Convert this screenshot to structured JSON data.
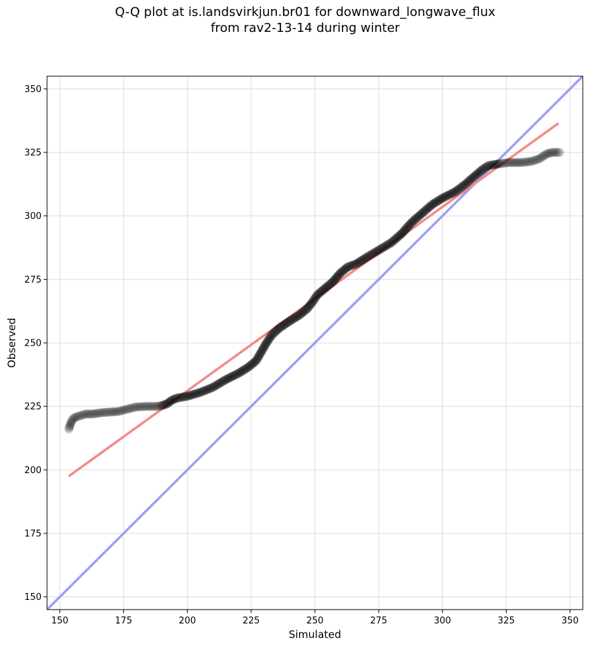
{
  "chart_data": {
    "type": "scatter",
    "title_line1": "Q-Q plot at is.landsvirkjun.br01 for downward_longwave_flux",
    "title_line2": "from rav2-13-14 during winter",
    "xlabel": "Simulated",
    "ylabel": "Observed",
    "xlim": [
      145,
      355
    ],
    "ylim": [
      145,
      355
    ],
    "xticks": [
      150,
      175,
      200,
      225,
      250,
      275,
      300,
      325,
      350
    ],
    "yticks": [
      150,
      175,
      200,
      225,
      250,
      275,
      300,
      325,
      350
    ],
    "grid": true,
    "colors": {
      "points": "#000000",
      "fit_line": "#f28b8b",
      "identity_line": "#9f9ff2"
    },
    "quantile_curve": [
      [
        153.5,
        216
      ],
      [
        154,
        217.5
      ],
      [
        154.5,
        219
      ],
      [
        155.5,
        220.5
      ],
      [
        157,
        221
      ],
      [
        160,
        222
      ],
      [
        163,
        222
      ],
      [
        166,
        222.5
      ],
      [
        170,
        222.8
      ],
      [
        173,
        223
      ],
      [
        176,
        223.8
      ],
      [
        180,
        224.8
      ],
      [
        184,
        225
      ],
      [
        188,
        225
      ],
      [
        190,
        225.3
      ],
      [
        192,
        226
      ],
      [
        194,
        227.5
      ],
      [
        196,
        228.3
      ],
      [
        200,
        229
      ],
      [
        205,
        230.5
      ],
      [
        210,
        232.5
      ],
      [
        215,
        235.5
      ],
      [
        220,
        238
      ],
      [
        224,
        240.5
      ],
      [
        227,
        243
      ],
      [
        229,
        246.5
      ],
      [
        231,
        250
      ],
      [
        233,
        253
      ],
      [
        236,
        255.8
      ],
      [
        240,
        258.5
      ],
      [
        244,
        261
      ],
      [
        247,
        263.5
      ],
      [
        249,
        266
      ],
      [
        251,
        269
      ],
      [
        254,
        271.5
      ],
      [
        257,
        274
      ],
      [
        260,
        277.5
      ],
      [
        263,
        280
      ],
      [
        266,
        281
      ],
      [
        270,
        283.5
      ],
      [
        275,
        286.5
      ],
      [
        280,
        289.5
      ],
      [
        284,
        293
      ],
      [
        288,
        297.5
      ],
      [
        292,
        301
      ],
      [
        296,
        304.5
      ],
      [
        300,
        307
      ],
      [
        305,
        309.5
      ],
      [
        309,
        312.5
      ],
      [
        313,
        316
      ],
      [
        316,
        318.5
      ],
      [
        318,
        319.8
      ],
      [
        322,
        320.5
      ],
      [
        326,
        321
      ],
      [
        331,
        321
      ],
      [
        335,
        321.5
      ],
      [
        338,
        322.5
      ],
      [
        341,
        324.5
      ],
      [
        343,
        325
      ],
      [
        346,
        325
      ]
    ],
    "fit_line": {
      "x": [
        153.5,
        345.5
      ],
      "y": [
        197.5,
        336.5
      ]
    },
    "identity_line": {
      "x": [
        145,
        355
      ],
      "y": [
        145,
        355
      ]
    }
  }
}
